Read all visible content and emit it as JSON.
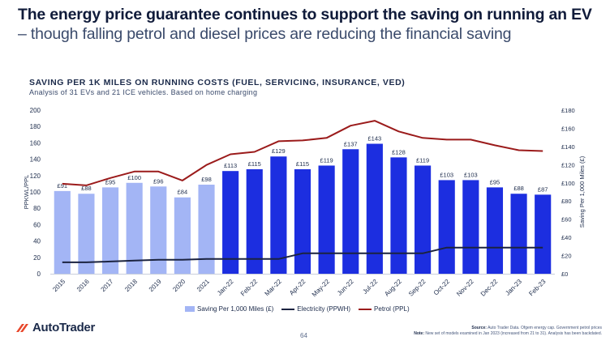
{
  "header": {
    "title_bold": "The energy price guarantee continues to support the saving on running an EV",
    "title_rest": " – though falling petrol and diesel prices are reducing the financial saving"
  },
  "chart_data": {
    "type": "bar",
    "title": "SAVING PER 1K MILES ON RUNNING COSTS (FUEL, SERVICING, INSURANCE, VED)",
    "subtitle": "Analysis of 31 EVs and 21 ICE vehicles. Based on home charging",
    "categories": [
      "2015",
      "2016",
      "2017",
      "2018",
      "2019",
      "2020",
      "2021",
      "Jan-22",
      "Feb-22",
      "Mar-22",
      "Apr-22",
      "May-22",
      "Jun-22",
      "Jul-22",
      "Aug-22",
      "Sep-22",
      "Oct-22",
      "Nov-22",
      "Dec-22",
      "Jan-23",
      "Feb-23"
    ],
    "ylabel": "PPKWL/PPL",
    "y2label": "Saving Per 1,000 Miles (£)",
    "ylim": [
      0,
      200
    ],
    "y_ticks": [
      "0",
      "20",
      "40",
      "60",
      "80",
      "100",
      "120",
      "140",
      "160",
      "180",
      "200"
    ],
    "y2lim": [
      0,
      180
    ],
    "y2_ticks": [
      "£0",
      "£20",
      "£40",
      "£60",
      "£80",
      "£100",
      "£120",
      "£140",
      "£160",
      "£180"
    ],
    "series": [
      {
        "name": "Saving Per 1,000 Miles (£)",
        "type": "bar",
        "axis": "right",
        "values": [
          91,
          88,
          95,
          100,
          96,
          84,
          98,
          113,
          115,
          129,
          115,
          119,
          137,
          143,
          128,
          119,
          103,
          103,
          95,
          88,
          87
        ],
        "labels": [
          "£91",
          "£88",
          "£95",
          "£100",
          "£96",
          "£84",
          "£98",
          "£113",
          "£115",
          "£129",
          "£115",
          "£119",
          "£137",
          "£143",
          "£128",
          "£119",
          "£103",
          "£103",
          "£95",
          "£88",
          "£87"
        ],
        "color_historic": "#a3b5f5",
        "color_recent": "#1c2ee0"
      },
      {
        "name": "Electricity (PPWH)",
        "type": "line",
        "axis": "left",
        "values": [
          14,
          14,
          15,
          16,
          17,
          17,
          18,
          18,
          18,
          18,
          25,
          25,
          25,
          25,
          25,
          25,
          32,
          32,
          32,
          32,
          32
        ],
        "color": "#1b2340"
      },
      {
        "name": "Petrol (PPL)",
        "type": "line",
        "axis": "left",
        "values": [
          110,
          108,
          117,
          125,
          125,
          114,
          133,
          146,
          149,
          162,
          163,
          166,
          181,
          187,
          174,
          166,
          164,
          164,
          157,
          151,
          150
        ],
        "color": "#9b1b1b"
      }
    ]
  },
  "footer": {
    "logo_text": "AutoTrader",
    "page_number": "64",
    "source_label": "Source:",
    "source_text": " Auto Trader Data. Ofgem energy cap. Government petrol prices",
    "note_label": "Note:",
    "note_text": " New set of models examined in Jan 2023 (increased from 21 to 31). Analysis has been backdated."
  },
  "colors": {
    "accent_red": "#e8472b",
    "navy": "#1b2a4a"
  }
}
